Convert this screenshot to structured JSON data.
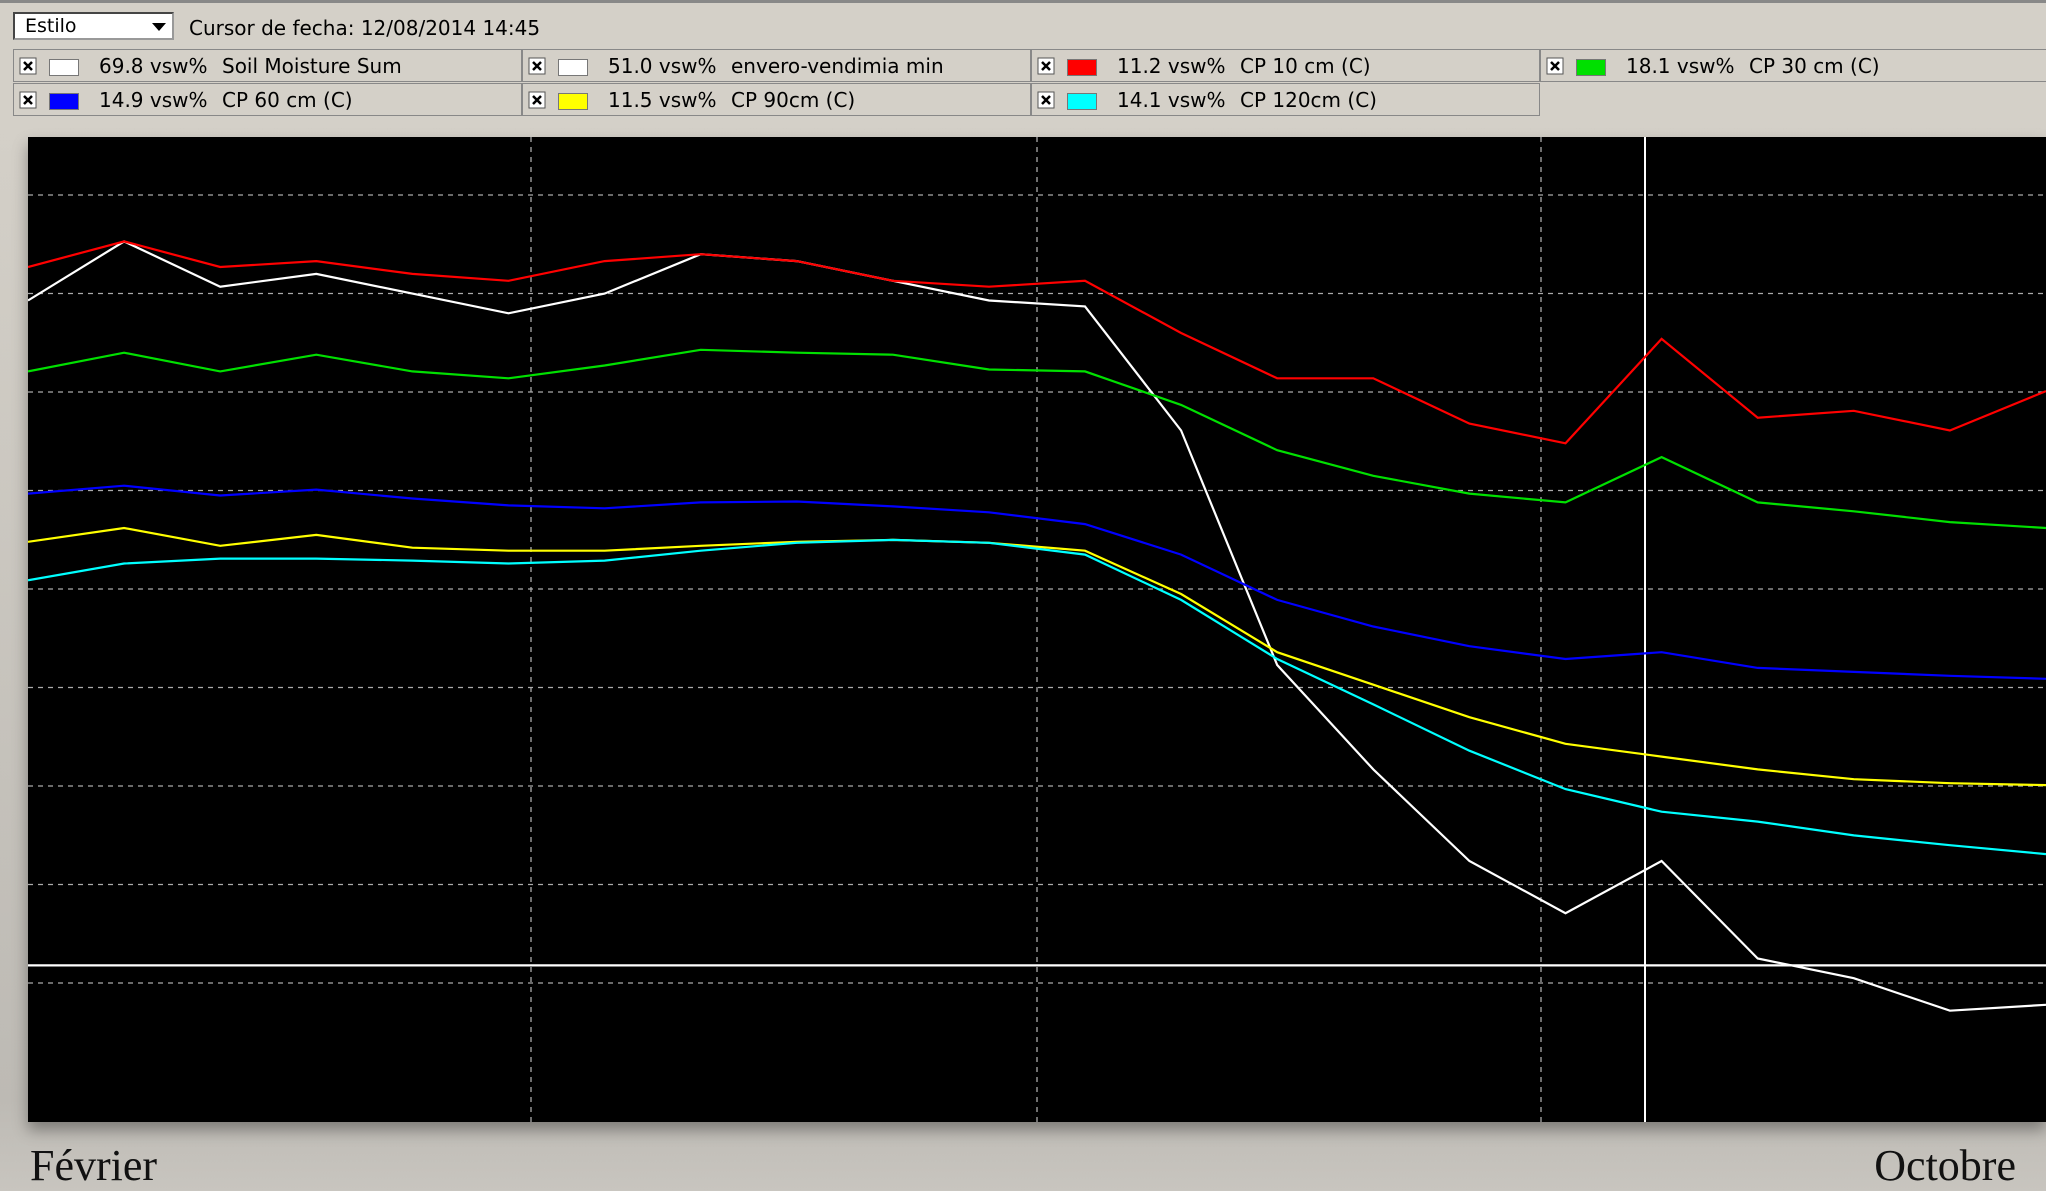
{
  "toolbar": {
    "style_select": "Estilo",
    "cursor_label": "Cursor de fecha:",
    "cursor_date": "12/08/2014 14:45"
  },
  "chart_data": {
    "type": "line",
    "categories": [
      "Février",
      null,
      null,
      null,
      null,
      null,
      null,
      null,
      null,
      null,
      null,
      null,
      null,
      null,
      null,
      null,
      null,
      null,
      null,
      null,
      null,
      "Octobre"
    ],
    "ylim": [
      0,
      100
    ],
    "series": [
      {
        "name": "Soil Moisture Sum",
        "reading": "69.8 vsw%",
        "color": "#ffffff",
        "values": [
          83.4,
          89.4,
          84.8,
          86.1,
          84.1,
          82.1,
          84.1,
          88.1,
          87.4,
          85.4,
          83.4,
          82.8,
          70.2,
          46.4,
          35.8,
          26.5,
          21.2,
          26.5,
          16.6,
          14.6,
          11.3,
          11.9
        ]
      },
      {
        "name": "envero-vendimia min",
        "reading": "51.0 vsw%",
        "color": "#ffffff",
        "values": [
          15.9,
          15.9,
          15.9,
          15.9,
          15.9,
          15.9,
          15.9,
          15.9,
          15.9,
          15.9,
          15.9,
          15.9,
          15.9,
          15.9,
          15.9,
          15.9,
          15.9,
          15.9,
          15.9,
          15.9,
          15.9,
          15.9
        ]
      },
      {
        "name": "CP 10 cm (C)",
        "reading": "11.2 vsw%",
        "color": "#ff0000",
        "values": [
          86.8,
          89.4,
          86.8,
          87.4,
          86.1,
          85.4,
          87.4,
          88.1,
          87.4,
          85.4,
          84.8,
          85.4,
          80.1,
          75.5,
          75.5,
          70.9,
          68.9,
          79.5,
          71.5,
          72.2,
          70.2,
          74.2
        ]
      },
      {
        "name": "CP 30 cm (C)",
        "reading": "18.1 vsw%",
        "color": "#00e000",
        "values": [
          76.2,
          78.1,
          76.2,
          77.9,
          76.2,
          75.5,
          76.8,
          78.4,
          78.1,
          77.9,
          76.4,
          76.2,
          72.8,
          68.2,
          65.6,
          63.8,
          62.9,
          67.5,
          62.9,
          62.0,
          60.9,
          60.3
        ]
      },
      {
        "name": "CP 60 cm (C)",
        "reading": "14.9 vsw%",
        "color": "#0000ff",
        "values": [
          63.8,
          64.6,
          63.6,
          64.2,
          63.3,
          62.6,
          62.3,
          62.9,
          63.0,
          62.5,
          61.9,
          60.7,
          57.6,
          53.0,
          50.3,
          48.3,
          47.0,
          47.7,
          46.1,
          45.7,
          45.3,
          45.0
        ]
      },
      {
        "name": "CP 90cm (C)",
        "reading": "11.5 vsw%",
        "color": "#ffff00",
        "values": [
          58.9,
          60.3,
          58.5,
          59.6,
          58.3,
          58.0,
          58.0,
          58.5,
          58.9,
          59.1,
          58.8,
          58.0,
          53.6,
          47.7,
          44.4,
          41.1,
          38.4,
          37.1,
          35.8,
          34.8,
          34.4,
          34.2
        ]
      },
      {
        "name": "CP 120cm (C)",
        "reading": "14.1 vsw%",
        "color": "#00ffff",
        "values": [
          55.0,
          56.7,
          57.2,
          57.2,
          57.0,
          56.7,
          57.0,
          58.0,
          58.8,
          59.1,
          58.8,
          57.6,
          53.0,
          47.0,
          42.4,
          37.7,
          33.8,
          31.5,
          30.5,
          29.1,
          28.1,
          27.2
        ]
      }
    ]
  }
}
